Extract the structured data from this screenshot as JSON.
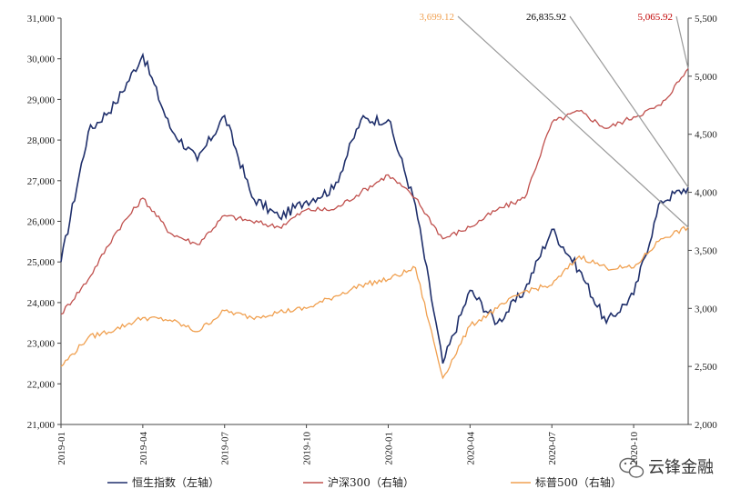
{
  "chart_data": {
    "type": "line",
    "x": [
      "2019-01",
      "2019-02",
      "2019-03",
      "2019-04",
      "2019-05",
      "2019-06",
      "2019-07",
      "2019-08",
      "2019-09",
      "2019-10",
      "2019-11",
      "2019-12",
      "2020-01",
      "2020-02",
      "2020-03",
      "2020-04",
      "2020-05",
      "2020-06",
      "2020-07",
      "2020-08",
      "2020-09",
      "2020-10",
      "2020-11",
      "2020-12"
    ],
    "x_tick_labels": [
      "2019-01",
      "2019-04",
      "2019-07",
      "2019-10",
      "2020-01",
      "2020-04",
      "2020-07",
      "2020-10"
    ],
    "left_axis": {
      "ylim": [
        21000,
        31000
      ],
      "ticks": [
        "21,000",
        "22,000",
        "23,000",
        "24,000",
        "25,000",
        "26,000",
        "27,000",
        "28,000",
        "29,000",
        "30,000",
        "31,000"
      ]
    },
    "right_axis": {
      "ylim": [
        2000,
        5500
      ],
      "ticks": [
        "2,000",
        "2,500",
        "3,000",
        "3,500",
        "4,000",
        "4,500",
        "5,000",
        "5,500"
      ]
    },
    "series": [
      {
        "name": "恒生指数（左轴）",
        "axis": "left",
        "color": "#1f2f6b",
        "values": [
          25000,
          28200,
          28900,
          30100,
          28300,
          27500,
          28600,
          26600,
          26100,
          26500,
          26800,
          28500,
          28500,
          26400,
          22500,
          24300,
          23500,
          24300,
          25800,
          24800,
          23500,
          24200,
          26500,
          26835.92
        ]
      },
      {
        "name": "沪深300（右轴）",
        "axis": "right",
        "color": "#c0504d",
        "values": [
          2950,
          3250,
          3650,
          3950,
          3650,
          3550,
          3800,
          3750,
          3700,
          3850,
          3850,
          4000,
          4150,
          3950,
          3600,
          3700,
          3850,
          3950,
          4600,
          4700,
          4550,
          4650,
          4750,
          5065.92
        ]
      },
      {
        "name": "标普500（右轴）",
        "axis": "right",
        "color": "#f0a050",
        "values": [
          2500,
          2750,
          2820,
          2920,
          2900,
          2800,
          2980,
          2920,
          2970,
          3000,
          3100,
          3200,
          3250,
          3350,
          2400,
          2850,
          3000,
          3150,
          3200,
          3450,
          3350,
          3350,
          3600,
          3699.12
        ]
      }
    ],
    "annotations": [
      {
        "text": "3,699.12",
        "color": "#f0a050"
      },
      {
        "text": "26,835.92",
        "color": "#000000"
      },
      {
        "text": "5,065.92",
        "color": "#c00000"
      }
    ],
    "legend": [
      "恒生指数（左轴）",
      "沪深300（右轴）",
      "标普500（右轴）"
    ],
    "legend_placement": "bottom",
    "grid": false
  },
  "watermark": {
    "text": "云锋金融",
    "icon": "wechat-icon"
  }
}
